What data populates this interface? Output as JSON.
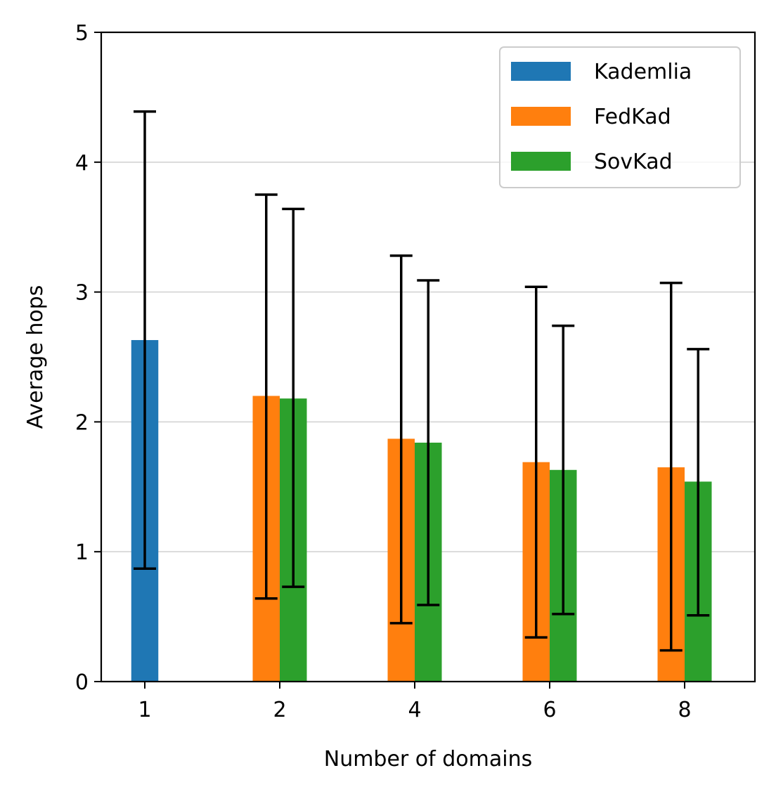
{
  "chart_data": {
    "type": "bar",
    "xlabel": "Number of domains",
    "ylabel": "Average hops",
    "categories": [
      "1",
      "2",
      "4",
      "6",
      "8"
    ],
    "ylim": [
      0,
      5
    ],
    "yticks": [
      0,
      1,
      2,
      3,
      4,
      5
    ],
    "grid": "horizontal",
    "legend_position": "upper right",
    "series": [
      {
        "name": "Kademlia",
        "color": "#1f77b4",
        "values": [
          2.63,
          null,
          null,
          null,
          null
        ],
        "err_low": [
          0.87,
          null,
          null,
          null,
          null
        ],
        "err_high": [
          4.39,
          null,
          null,
          null,
          null
        ]
      },
      {
        "name": "FedKad",
        "color": "#ff7f0e",
        "values": [
          null,
          2.2,
          1.87,
          1.69,
          1.65
        ],
        "err_low": [
          null,
          0.64,
          0.45,
          0.34,
          0.24
        ],
        "err_high": [
          null,
          3.75,
          3.28,
          3.04,
          3.07
        ]
      },
      {
        "name": "SovKad",
        "color": "#2ca02c",
        "values": [
          null,
          2.18,
          1.84,
          1.63,
          1.54
        ],
        "err_low": [
          null,
          0.73,
          0.59,
          0.52,
          0.51
        ],
        "err_high": [
          null,
          3.64,
          3.09,
          2.74,
          2.56
        ]
      }
    ]
  }
}
